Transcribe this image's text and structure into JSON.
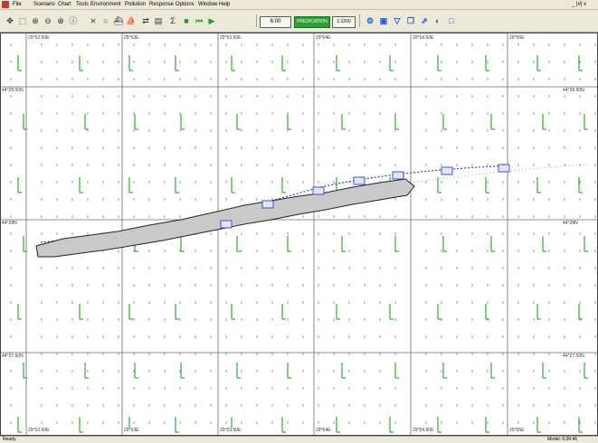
{
  "menubar": {
    "items": [
      "File",
      "Scenario",
      "Chart",
      "Tools",
      "Environment",
      "Pollution",
      "Response",
      "Options",
      "Window",
      "Help"
    ],
    "window_controls": "_ |#| x"
  },
  "toolbar": {
    "tools": [
      {
        "icon": "pan-icon",
        "glyph": "✥"
      },
      {
        "icon": "select-icon",
        "glyph": "⬚"
      },
      {
        "icon": "zoom-in-icon",
        "glyph": "⊕"
      },
      {
        "icon": "zoom-out-icon",
        "glyph": "⊖"
      },
      {
        "icon": "zoom-window-icon",
        "glyph": "⊗"
      },
      {
        "icon": "info-icon",
        "glyph": "ⓘ"
      },
      {
        "icon": "measure-icon",
        "glyph": "⨯"
      },
      {
        "icon": "circle-icon",
        "glyph": "○"
      },
      {
        "icon": "boat-icon",
        "glyph": "⛴"
      },
      {
        "icon": "boat-alt-icon",
        "glyph": "⛵"
      },
      {
        "icon": "transfer-icon",
        "glyph": "⇄"
      },
      {
        "icon": "grid-icon",
        "glyph": "▤"
      },
      {
        "icon": "sum-icon",
        "glyph": "Σ"
      },
      {
        "icon": "stop-icon",
        "glyph": "■"
      },
      {
        "icon": "rewind-icon",
        "glyph": "⏮"
      },
      {
        "icon": "play-icon",
        "glyph": "▶"
      }
    ],
    "time_value": "6:00",
    "mode_label": "PREDICATION",
    "scale_value": "1:1200",
    "right_tools": [
      {
        "icon": "settings-icon",
        "glyph": "⚙"
      },
      {
        "icon": "save-icon",
        "glyph": "▣"
      },
      {
        "icon": "filter-icon",
        "glyph": "▽"
      },
      {
        "icon": "layers-icon",
        "glyph": "❐"
      },
      {
        "icon": "export-icon",
        "glyph": "⇗"
      },
      {
        "icon": "globe-icon",
        "glyph": "◐"
      },
      {
        "icon": "window-icon",
        "glyph": "□"
      }
    ]
  },
  "map": {
    "longitude_labels": [
      "29°52.50E",
      "29°53E",
      "29°53.50E",
      "29°54E",
      "29°54.50E",
      "29°55E"
    ],
    "latitude_labels_left": [
      "44°28.50N",
      "44°28N",
      "44°27.50N"
    ],
    "latitude_labels_right": [
      "44°28.50N",
      "44°28N",
      "44°27.50N"
    ],
    "grid_color": "#6a6a6a",
    "current_color": "#2bb02b",
    "wind_color": "#6a8ee0",
    "track_color": "#3040c8",
    "slick_color": "#c9c9c9"
  },
  "status": {
    "left": "Ready",
    "right": "Model: 6:00:46"
  }
}
